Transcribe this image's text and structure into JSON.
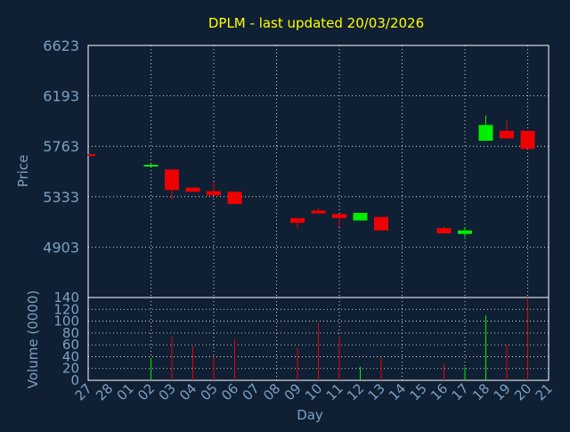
{
  "title": "DPLM - last updated 20/03/2026",
  "colors": {
    "background": "#0f2034",
    "axis_text": "#7f9fc0",
    "title": "#ffff00",
    "grid": "#ffffff",
    "frame": "#ffffff",
    "up": "#00ee00",
    "down": "#ee0000"
  },
  "chart_data": [
    {
      "type": "candlestick",
      "ylabel": "Price",
      "ylim": [
        4473,
        6623
      ],
      "yticks": [
        "6623",
        "6193",
        "5763",
        "5333",
        "4903"
      ],
      "grid": true,
      "categories": [
        "27",
        "28",
        "01",
        "02",
        "03",
        "04",
        "05",
        "06",
        "07",
        "08",
        "09",
        "10",
        "11",
        "12",
        "13",
        "14",
        "15",
        "16",
        "17",
        "18",
        "19",
        "20",
        "21"
      ],
      "candles": [
        {
          "day": "27",
          "open": 5695,
          "close": 5685,
          "high": 5695,
          "low": 5685
        },
        {
          "day": "02",
          "open": 5598,
          "close": 5605,
          "high": 5615,
          "low": 5595
        },
        {
          "day": "03",
          "open": 5565,
          "close": 5390,
          "high": 5565,
          "low": 5310
        },
        {
          "day": "04",
          "open": 5410,
          "close": 5375,
          "high": 5410,
          "low": 5375
        },
        {
          "day": "05",
          "open": 5380,
          "close": 5345,
          "high": 5460,
          "low": 5345
        },
        {
          "day": "06",
          "open": 5375,
          "close": 5270,
          "high": 5375,
          "low": 5270
        },
        {
          "day": "09",
          "open": 5150,
          "close": 5110,
          "high": 5150,
          "low": 5060
        },
        {
          "day": "10",
          "open": 5215,
          "close": 5190,
          "high": 5235,
          "low": 5190
        },
        {
          "day": "11",
          "open": 5185,
          "close": 5150,
          "high": 5185,
          "low": 5075
        },
        {
          "day": "12",
          "open": 5130,
          "close": 5195,
          "high": 5195,
          "low": 5130
        },
        {
          "day": "13",
          "open": 5160,
          "close": 5045,
          "high": 5160,
          "low": 5045
        },
        {
          "day": "16",
          "open": 5065,
          "close": 5020,
          "high": 5080,
          "low": 5020
        },
        {
          "day": "17",
          "open": 5015,
          "close": 5045,
          "high": 5070,
          "low": 4990
        },
        {
          "day": "18",
          "open": 5810,
          "close": 5945,
          "high": 6025,
          "low": 5810
        },
        {
          "day": "19",
          "open": 5895,
          "close": 5830,
          "high": 5980,
          "low": 5830
        },
        {
          "day": "20",
          "open": 5895,
          "close": 5740,
          "high": 5895,
          "low": 5740
        }
      ]
    },
    {
      "type": "bar",
      "ylabel": "Volume (0000)",
      "xlabel": "Day",
      "ylim": [
        0,
        140
      ],
      "yticks": [
        "140",
        "120",
        "100",
        "80",
        "60",
        "40",
        "20",
        "0"
      ],
      "grid": true,
      "categories": [
        "27",
        "28",
        "01",
        "02",
        "03",
        "04",
        "05",
        "06",
        "07",
        "08",
        "09",
        "10",
        "11",
        "12",
        "13",
        "14",
        "15",
        "16",
        "17",
        "18",
        "19",
        "20",
        "21"
      ],
      "bars": [
        {
          "day": "02",
          "value": 38,
          "direction": "up"
        },
        {
          "day": "03",
          "value": 74,
          "direction": "down"
        },
        {
          "day": "04",
          "value": 58,
          "direction": "down"
        },
        {
          "day": "05",
          "value": 40,
          "direction": "down"
        },
        {
          "day": "06",
          "value": 70,
          "direction": "down"
        },
        {
          "day": "09",
          "value": 55,
          "direction": "down"
        },
        {
          "day": "10",
          "value": 97,
          "direction": "down"
        },
        {
          "day": "11",
          "value": 73,
          "direction": "down"
        },
        {
          "day": "12",
          "value": 23,
          "direction": "up"
        },
        {
          "day": "13",
          "value": 38,
          "direction": "down"
        },
        {
          "day": "16",
          "value": 28,
          "direction": "down"
        },
        {
          "day": "17",
          "value": 22,
          "direction": "up"
        },
        {
          "day": "18",
          "value": 110,
          "direction": "up"
        },
        {
          "day": "19",
          "value": 60,
          "direction": "down"
        },
        {
          "day": "20",
          "value": 140,
          "direction": "down"
        }
      ]
    }
  ]
}
